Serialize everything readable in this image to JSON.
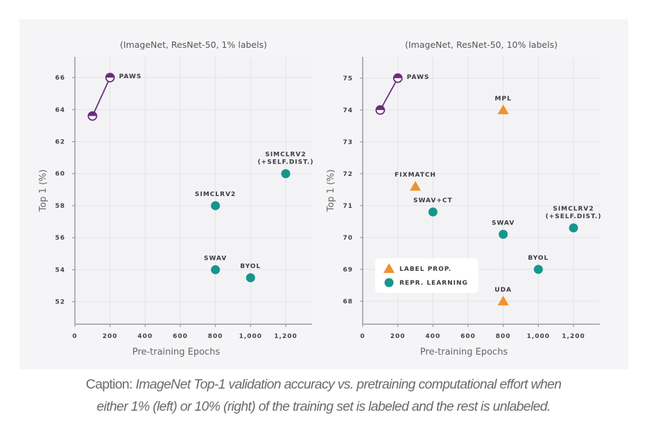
{
  "chart_data": [
    {
      "type": "scatter",
      "title": "(ImageNet, ResNet-50, 1% labels)",
      "xlabel": "Pre-training Epochs",
      "ylabel": "Top 1 (%)",
      "xlim": [
        0,
        1350
      ],
      "ylim": [
        50.6,
        67.3
      ],
      "xticks": [
        0,
        200,
        400,
        600,
        800,
        1000,
        1200
      ],
      "xtick_labels": [
        "0",
        "200",
        "400",
        "600",
        "800",
        "1,000",
        "1,200"
      ],
      "yticks": [
        52,
        54,
        56,
        58,
        60,
        62,
        64,
        66
      ],
      "grid": true,
      "series": [
        {
          "name": "PAWS",
          "marker": "half-circle",
          "color": "#6b2d7b",
          "line": true,
          "points": [
            {
              "x": 100,
              "y": 63.6
            },
            {
              "x": 200,
              "y": 66
            }
          ],
          "label": [
            "PAWS"
          ],
          "label_pos": "right"
        },
        {
          "name": "SIMCLRV2",
          "marker": "circle",
          "color": "#17958c",
          "points": [
            {
              "x": 800,
              "y": 58
            }
          ],
          "label": [
            "SIMCLRV2"
          ],
          "label_pos": "above"
        },
        {
          "name": "SIMCLRV2 (+SELF.DIST.)",
          "marker": "circle",
          "color": "#17958c",
          "points": [
            {
              "x": 1200,
              "y": 60
            }
          ],
          "label": [
            "SIMCLRV2",
            "(+SELF.DIST.)"
          ],
          "label_pos": "above"
        },
        {
          "name": "SWAV",
          "marker": "circle",
          "color": "#17958c",
          "points": [
            {
              "x": 800,
              "y": 54
            }
          ],
          "label": [
            "SWAV"
          ],
          "label_pos": "above"
        },
        {
          "name": "BYOL",
          "marker": "circle",
          "color": "#17958c",
          "points": [
            {
              "x": 1000,
              "y": 53.5
            }
          ],
          "label": [
            "BYOL"
          ],
          "label_pos": "above"
        }
      ]
    },
    {
      "type": "scatter",
      "title": "(ImageNet, ResNet-50, 10% labels)",
      "xlabel": "Pre-training Epochs",
      "ylabel": "Top 1 (%)",
      "xlim": [
        0,
        1350
      ],
      "ylim": [
        67.28,
        75.67
      ],
      "xticks": [
        0,
        200,
        400,
        600,
        800,
        1000,
        1200
      ],
      "xtick_labels": [
        "0",
        "200",
        "400",
        "600",
        "800",
        "1,000",
        "1,200"
      ],
      "yticks": [
        68,
        69,
        70,
        71,
        72,
        73,
        74,
        75
      ],
      "grid": true,
      "legend": {
        "placement": "bottom-left",
        "entries": [
          {
            "label": "LABEL PROP.",
            "marker": "triangle",
            "color": "#f0922b"
          },
          {
            "label": "REPR. LEARNING",
            "marker": "circle",
            "color": "#17958c"
          }
        ]
      },
      "series": [
        {
          "name": "PAWS",
          "marker": "half-circle",
          "color": "#6b2d7b",
          "line": true,
          "points": [
            {
              "x": 100,
              "y": 74
            },
            {
              "x": 200,
              "y": 75
            }
          ],
          "label": [
            "PAWS"
          ],
          "label_pos": "right"
        },
        {
          "name": "MPL",
          "marker": "triangle",
          "color": "#f0922b",
          "points": [
            {
              "x": 800,
              "y": 74
            }
          ],
          "label": [
            "MPL"
          ],
          "label_pos": "above"
        },
        {
          "name": "FIXMATCH",
          "marker": "triangle",
          "color": "#f0922b",
          "points": [
            {
              "x": 300,
              "y": 71.6
            }
          ],
          "label": [
            "FIXMATCH"
          ],
          "label_pos": "above"
        },
        {
          "name": "SWAV+CT",
          "marker": "circle",
          "color": "#17958c",
          "points": [
            {
              "x": 400,
              "y": 70.8
            }
          ],
          "label": [
            "SWAV+CT"
          ],
          "label_pos": "above"
        },
        {
          "name": "SWAV",
          "marker": "circle",
          "color": "#17958c",
          "points": [
            {
              "x": 800,
              "y": 70.1
            }
          ],
          "label": [
            "SWAV"
          ],
          "label_pos": "above"
        },
        {
          "name": "SIMCLRV2 (+SELF.DIST.)",
          "marker": "circle",
          "color": "#17958c",
          "points": [
            {
              "x": 1200,
              "y": 70.3
            }
          ],
          "label": [
            "SIMCLRV2",
            "(+SELF.DIST.)"
          ],
          "label_pos": "above"
        },
        {
          "name": "BYOL",
          "marker": "circle",
          "color": "#17958c",
          "points": [
            {
              "x": 1000,
              "y": 69
            }
          ],
          "label": [
            "BYOL"
          ],
          "label_pos": "above"
        },
        {
          "name": "UDA",
          "marker": "triangle",
          "color": "#f0922b",
          "points": [
            {
              "x": 800,
              "y": 68
            }
          ],
          "label": [
            "UDA"
          ],
          "label_pos": "above"
        }
      ]
    }
  ],
  "caption": {
    "prefix": "Caption: ",
    "line1": "ImageNet Top-1 validation accuracy vs. pretraining computational effort when",
    "line2": "either 1% (left) or 10% (right) of the training set is labeled and the rest is unlabeled."
  }
}
